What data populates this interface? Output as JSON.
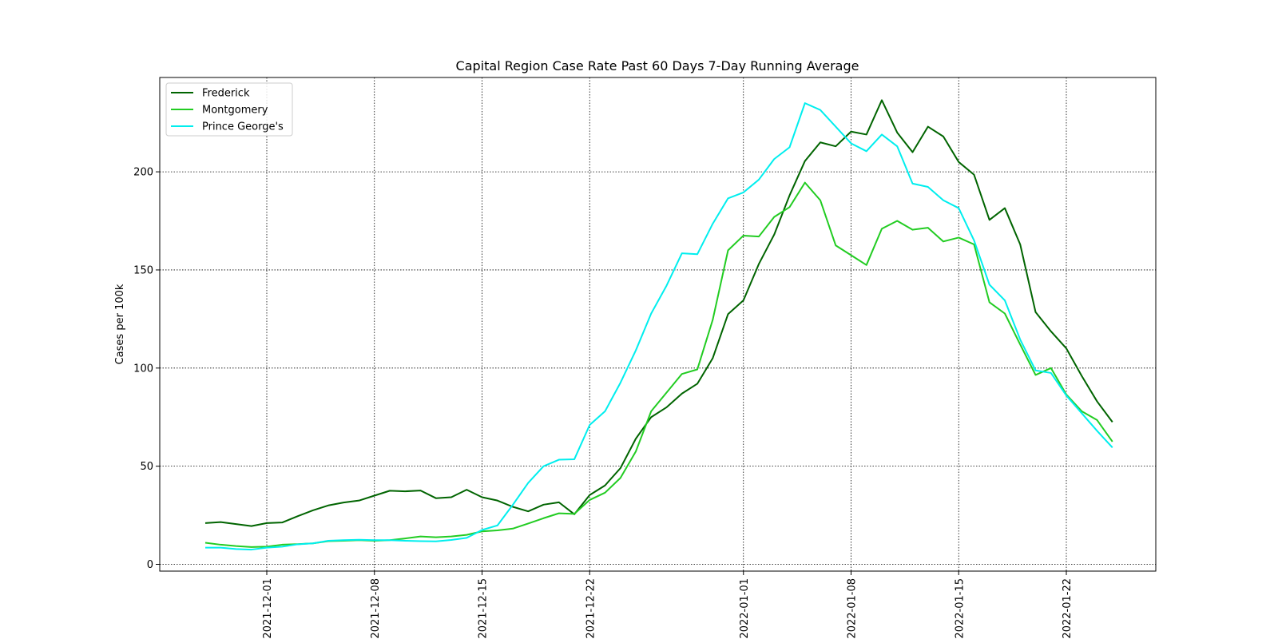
{
  "chart_data": {
    "type": "line",
    "title": "Capital Region Case Rate  Past 60 Days 7-Day Running Average",
    "xlabel": "",
    "ylabel": "Cases per 100k",
    "start_date": "2021-11-27",
    "x_ticks": [
      "2021-12-01",
      "2021-12-08",
      "2021-12-15",
      "2021-12-22",
      "2022-01-01",
      "2022-01-08",
      "2022-01-15",
      "2022-01-22"
    ],
    "y_ticks": [
      "0",
      "50",
      "100",
      "150",
      "200"
    ],
    "ylim": [
      -4,
      248
    ],
    "grid": true,
    "legend_position": "upper left",
    "series": [
      {
        "name": "Frederick",
        "color": "#006400",
        "values": [
          21,
          21.5,
          20.5,
          19.5,
          21,
          21.3,
          24.5,
          27.5,
          30,
          31.5,
          32.5,
          35,
          37.5,
          37.2,
          37.6,
          33.7,
          34.2,
          38,
          34.2,
          32.5,
          29.3,
          27,
          30.4,
          31.6,
          25.5,
          35.3,
          40.2,
          49,
          64,
          75,
          80,
          87,
          92,
          105,
          127.5,
          134.5,
          153,
          168,
          188,
          205.5,
          215,
          213,
          220.5,
          219,
          236.5,
          220,
          210,
          223,
          218,
          205,
          198.5,
          175.5,
          181.5,
          163,
          128.5,
          118.7,
          110,
          96,
          83,
          72.5
        ]
      },
      {
        "name": "Montgomery",
        "color": "#22cc22",
        "values": [
          11,
          10,
          9.3,
          8.8,
          9,
          10,
          10.3,
          10.7,
          11.8,
          12,
          12.3,
          12,
          12.3,
          13.2,
          14.2,
          13.8,
          14.2,
          15,
          16.8,
          17.3,
          18.2,
          20.8,
          23.5,
          26,
          25.7,
          32.8,
          36.5,
          44,
          57.5,
          78,
          87.5,
          97,
          99.3,
          124.5,
          160,
          167.5,
          167,
          177,
          182,
          194.5,
          185.5,
          162.5,
          157.5,
          152.5,
          171,
          175,
          170.5,
          171.5,
          164.5,
          166.5,
          163,
          133.5,
          127.8,
          112,
          96.5,
          100,
          86.5,
          78,
          73.5,
          62.5
        ]
      },
      {
        "name": "Prince George's",
        "color": "#00eeee",
        "values": [
          8.5,
          8.5,
          7.8,
          7.5,
          8.5,
          9,
          10.2,
          10.7,
          12,
          12.3,
          12.5,
          12.3,
          12.3,
          12,
          11.8,
          11.7,
          12.4,
          13.5,
          17.5,
          19.8,
          30.3,
          41.5,
          50,
          53.3,
          53.5,
          71,
          78,
          92.5,
          109,
          127.8,
          142,
          158.5,
          158,
          173.5,
          186.5,
          189.5,
          196,
          206.5,
          212.5,
          235,
          231.5,
          223,
          214.5,
          210.5,
          219,
          213,
          194,
          192.3,
          185.5,
          181.5,
          165,
          142.5,
          134.5,
          114.5,
          98.8,
          97.5,
          86,
          77,
          68,
          59.5
        ]
      }
    ]
  }
}
